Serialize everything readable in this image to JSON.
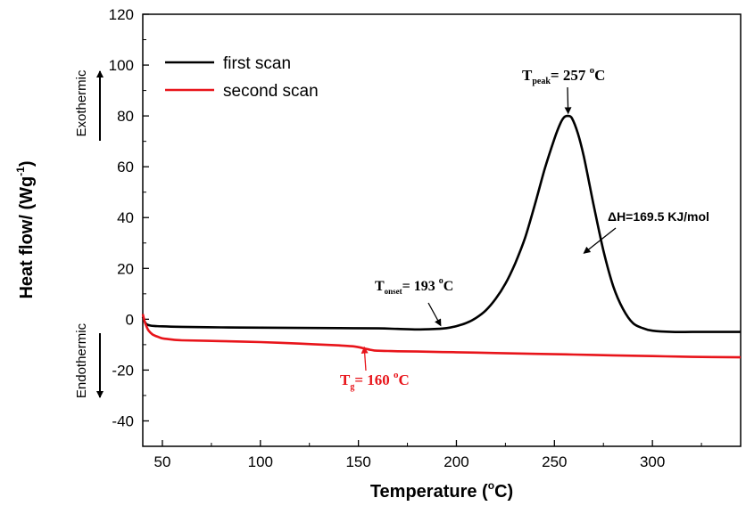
{
  "chart_data": {
    "type": "line",
    "xlabel": "Temperature",
    "xlabel_unit_open": " (",
    "xlabel_unit_deg": "o",
    "xlabel_unit_close": "C)",
    "ylabel": "Heat flow/ (Wg",
    "ylabel_exp": "-1",
    "ylabel_close": ")",
    "xlim": [
      40,
      345
    ],
    "ylim": [
      -50,
      120
    ],
    "x_ticks": [
      50,
      100,
      150,
      200,
      250,
      300
    ],
    "y_ticks": [
      -40,
      -20,
      0,
      20,
      40,
      60,
      80,
      100,
      120
    ],
    "grid": false,
    "legend_position": "top-left",
    "side_labels": {
      "top": "Exothermic",
      "bottom": "Endothermic"
    },
    "series": [
      {
        "name": "first scan",
        "color": "#000000",
        "x": [
          40,
          41,
          42,
          44,
          47,
          50,
          60,
          80,
          100,
          120,
          140,
          160,
          170,
          180,
          190,
          195,
          200,
          205,
          210,
          215,
          220,
          225,
          230,
          235,
          240,
          245,
          250,
          253,
          255,
          257,
          259,
          262,
          265,
          270,
          275,
          280,
          285,
          290,
          295,
          300,
          310,
          320,
          330,
          345
        ],
        "y": [
          1,
          -1,
          -2,
          -2.5,
          -2.7,
          -2.8,
          -3,
          -3.2,
          -3.3,
          -3.4,
          -3.5,
          -3.6,
          -3.8,
          -4,
          -3.8,
          -3.5,
          -2.7,
          -1.5,
          0.5,
          3.5,
          8,
          14,
          22,
          32,
          45,
          59,
          71,
          77,
          79.5,
          80,
          79,
          73,
          64,
          45,
          27,
          13,
          4,
          -1.5,
          -3.5,
          -4.5,
          -5,
          -5,
          -5,
          -5
        ]
      },
      {
        "name": "second scan",
        "color": "#e8141a",
        "x": [
          40,
          41,
          42,
          43,
          45,
          48,
          50,
          55,
          60,
          80,
          100,
          120,
          140,
          148,
          152,
          156,
          158,
          160,
          165,
          170,
          180,
          200,
          220,
          240,
          260,
          280,
          300,
          320,
          345
        ],
        "y": [
          2,
          -1,
          -3,
          -4.5,
          -6,
          -7,
          -7.5,
          -8,
          -8.3,
          -8.6,
          -9,
          -9.6,
          -10.3,
          -10.7,
          -11.3,
          -12,
          -12.3,
          -12.4,
          -12.5,
          -12.6,
          -12.7,
          -13,
          -13.3,
          -13.6,
          -13.9,
          -14.2,
          -14.5,
          -14.8,
          -15
        ]
      }
    ],
    "annotations": {
      "peak": {
        "main": "T",
        "sub": "peak",
        "value": "= 257 ",
        "deg": "o",
        "unit": "C",
        "arrow_to": [
          257,
          80
        ]
      },
      "onset": {
        "main": "T",
        "sub": "onset",
        "value": "= 193 ",
        "deg": "o",
        "unit": "C",
        "arrow_to": [
          192,
          -2.5
        ]
      },
      "enthalpy": {
        "text": "ΔH=169.5 KJ/mol",
        "arrow_to": [
          265,
          26
        ]
      },
      "tg": {
        "main": "T",
        "sub": "g",
        "value": "= 160 ",
        "deg": "o",
        "unit": "C",
        "color": "#e8141a",
        "arrow_to": [
          153,
          -11
        ]
      }
    }
  }
}
